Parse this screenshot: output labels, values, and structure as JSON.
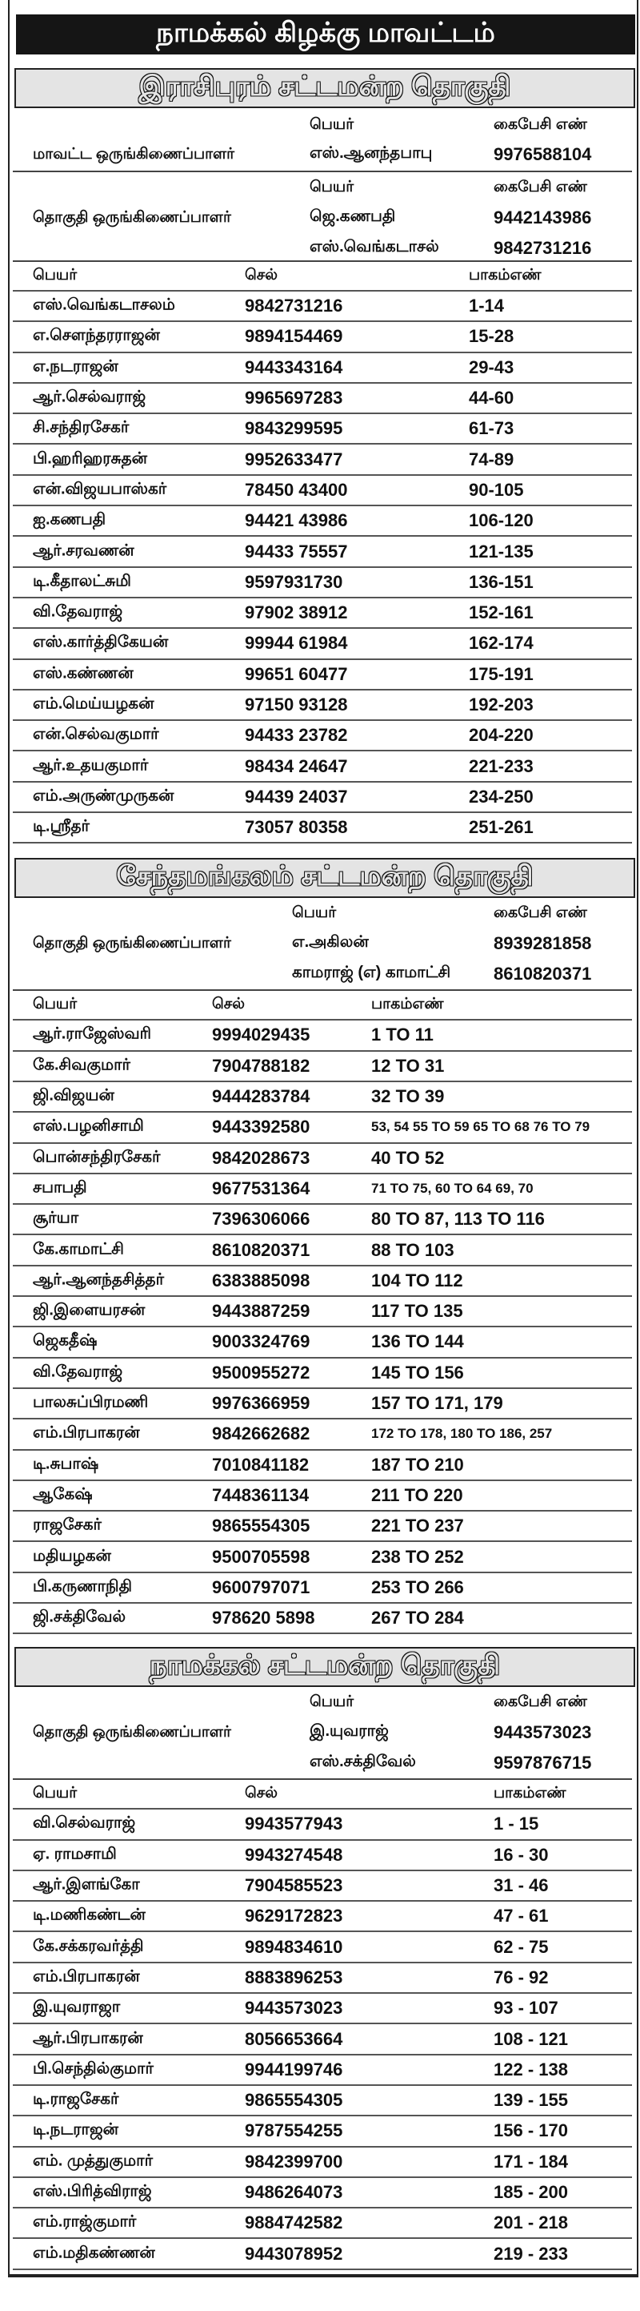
{
  "title": "நாமக்கல் கிழக்கு மாவட்டம்",
  "labels": {
    "name": "பெயர்",
    "mobile": "கைபேசி எண்",
    "cell": "செல்",
    "part_no": "பாகம்எண்"
  },
  "sections": [
    {
      "heading": "இராசிபுரம் சட்டமன்ற தொகுதி",
      "district_coordinator": {
        "role": "மாவட்ட ஒருங்கிணைப்பாளர்",
        "name": "எஸ்.ஆனந்தபாபு",
        "phone": "9976588104"
      },
      "constituency_coordinators": {
        "role": "தொகுதி ஒருங்கிணைப்பாளர்",
        "people": [
          {
            "name": "ஜெ.கணபதி",
            "phone": "9442143986"
          },
          {
            "name": "எஸ்.வெங்கடாசல்",
            "phone": "9842731216"
          }
        ]
      },
      "rows": [
        {
          "name": "எஸ்.வெங்கடாசலம்",
          "cell": "9842731216",
          "part": "1-14"
        },
        {
          "name": "எ.சௌந்தரராஜன்",
          "cell": "9894154469",
          "part": "15-28"
        },
        {
          "name": "எ.நடராஜன்",
          "cell": "9443343164",
          "part": "29-43"
        },
        {
          "name": "ஆர்.செல்வராஜ்",
          "cell": "9965697283",
          "part": "44-60"
        },
        {
          "name": "சி.சந்திரசேகர்",
          "cell": "9843299595",
          "part": "61-73"
        },
        {
          "name": "பி.ஹரிஹரசுதன்",
          "cell": "9952633477",
          "part": "74-89"
        },
        {
          "name": "என்.விஜயபாஸ்கர்",
          "cell": "78450 43400",
          "part": "90-105"
        },
        {
          "name": "ஐ.கணபதி",
          "cell": "94421 43986",
          "part": "106-120"
        },
        {
          "name": "ஆர்.சரவணன்",
          "cell": "94433 75557",
          "part": "121-135"
        },
        {
          "name": "டி.கீதாலட்சுமி",
          "cell": "9597931730",
          "part": "136-151"
        },
        {
          "name": "வி.தேவராஜ்",
          "cell": "97902 38912",
          "part": "152-161"
        },
        {
          "name": "எஸ்.கார்த்திகேயன்",
          "cell": "99944 61984",
          "part": "162-174"
        },
        {
          "name": "எஸ்.கண்ணன்",
          "cell": "99651 60477",
          "part": "175-191"
        },
        {
          "name": "எம்.மெய்யழகன்",
          "cell": "97150 93128",
          "part": "192-203"
        },
        {
          "name": "என்.செல்வகுமார்",
          "cell": "94433 23782",
          "part": "204-220"
        },
        {
          "name": "ஆர்.உதயகுமார்",
          "cell": "98434 24647",
          "part": "221-233"
        },
        {
          "name": "எம்.அருண்முருகன்",
          "cell": "94439 24037",
          "part": "234-250"
        },
        {
          "name": "டி.ஸ்ரீதர்",
          "cell": "73057 80358",
          "part": "251-261"
        }
      ]
    },
    {
      "heading": "சேந்தமங்கலம் சட்டமன்ற தொகுதி",
      "constituency_coordinators": {
        "role": "தொகுதி ஒருங்கிணைப்பாளர்",
        "people": [
          {
            "name": "எ.அகிலன்",
            "phone": "8939281858"
          },
          {
            "name": "காமராஜ் (எ) காமாட்சி",
            "phone": "8610820371"
          }
        ]
      },
      "rows": [
        {
          "name": "ஆர்.ராஜேஸ்வரி",
          "cell": "9994029435",
          "part": "1 TO 11"
        },
        {
          "name": "கே.சிவகுமார்",
          "cell": "7904788182",
          "part": "12 TO 31"
        },
        {
          "name": "ஜி.விஜயன்",
          "cell": "9444283784",
          "part": "32 TO 39"
        },
        {
          "name": "எஸ்.பழனிசாமி",
          "cell": "9443392580",
          "part": "53, 54 55 TO 59 65 TO 68 76 TO 79"
        },
        {
          "name": "பொன்சந்திரசேகர்",
          "cell": "9842028673",
          "part": "40 TO 52"
        },
        {
          "name": "சபாபதி",
          "cell": "9677531364",
          "part": "71 TO 75, 60 TO 64 69, 70"
        },
        {
          "name": "சூர்யா",
          "cell": "7396306066",
          "part": "80 TO 87, 113 TO 116"
        },
        {
          "name": "கே.காமாட்சி",
          "cell": "8610820371",
          "part": "88 TO 103"
        },
        {
          "name": "ஆர்.ஆனந்தசித்தர்",
          "cell": "6383885098",
          "part": "104 TO 112"
        },
        {
          "name": "ஜி.இளையரசன்",
          "cell": "9443887259",
          "part": "117 TO 135"
        },
        {
          "name": "ஜெகதீஷ்",
          "cell": "9003324769",
          "part": "136 TO 144"
        },
        {
          "name": "வி.தேவராஜ்",
          "cell": "9500955272",
          "part": "145 TO 156"
        },
        {
          "name": "பாலசுப்பிரமணி",
          "cell": "9976366959",
          "part": "157 TO 171, 179"
        },
        {
          "name": "எம்.பிரபாகரன்",
          "cell": "9842662682",
          "part": "172 TO 178, 180 TO 186, 257"
        },
        {
          "name": "டி.சுபாஷ்",
          "cell": "7010841182",
          "part": "187 TO 210"
        },
        {
          "name": "ஆகேஷ்",
          "cell": "7448361134",
          "part": "211 TO 220"
        },
        {
          "name": "ராஜசேகர்",
          "cell": "9865554305",
          "part": "221 TO 237"
        },
        {
          "name": "மதியழகன்",
          "cell": "9500705598",
          "part": "238 TO 252"
        },
        {
          "name": "பி.கருணாநிதி",
          "cell": "9600797071",
          "part": "253 TO 266"
        },
        {
          "name": "ஜி.சக்திவேல்",
          "cell": "978620 5898",
          "part": "267 TO 284"
        }
      ]
    },
    {
      "heading": "நாமக்கல் சட்டமன்ற தொகுதி",
      "constituency_coordinators": {
        "role": "தொகுதி ஒருங்கிணைப்பாளர்",
        "people": [
          {
            "name": "இ.யுவராஜ்",
            "phone": "9443573023"
          },
          {
            "name": "எஸ்.சக்திவேல்",
            "phone": "9597876715"
          }
        ]
      },
      "rows": [
        {
          "name": "வி.செல்வராஜ்",
          "cell": "9943577943",
          "part": "1 - 15"
        },
        {
          "name": "ஏ. ராமசாமி",
          "cell": "9943274548",
          "part": "16 - 30"
        },
        {
          "name": "ஆர்.இளங்கோ",
          "cell": "7904585523",
          "part": "31 - 46"
        },
        {
          "name": "டி.மணிகண்டன்",
          "cell": "9629172823",
          "part": "47 - 61"
        },
        {
          "name": "கே.சக்கரவர்த்தி",
          "cell": "9894834610",
          "part": "62 - 75"
        },
        {
          "name": "எம்.பிரபாகரன்",
          "cell": "8883896253",
          "part": "76 - 92"
        },
        {
          "name": "இ.யுவராஜா",
          "cell": "9443573023",
          "part": "93 - 107"
        },
        {
          "name": "ஆர்.பிரபாகரன்",
          "cell": "8056653664",
          "part": "108 - 121"
        },
        {
          "name": "பி.செந்தில்குமார்",
          "cell": "9944199746",
          "part": "122 - 138"
        },
        {
          "name": "டி.ராஜசேகர்",
          "cell": "9865554305",
          "part": "139 - 155"
        },
        {
          "name": "டி.நடராஜன்",
          "cell": "9787554255",
          "part": "156 - 170"
        },
        {
          "name": "எம். முத்துகுமார்",
          "cell": "9842399700",
          "part": "171 - 184"
        },
        {
          "name": "எஸ்.பிரித்விராஜ்",
          "cell": "9486264073",
          "part": "185 - 200"
        },
        {
          "name": "எம்.ராஜ்குமார்",
          "cell": "9884742582",
          "part": "201 - 218"
        },
        {
          "name": "எம்.மதிகண்ணன்",
          "cell": "9443078952",
          "part": "219 - 233"
        }
      ]
    }
  ]
}
